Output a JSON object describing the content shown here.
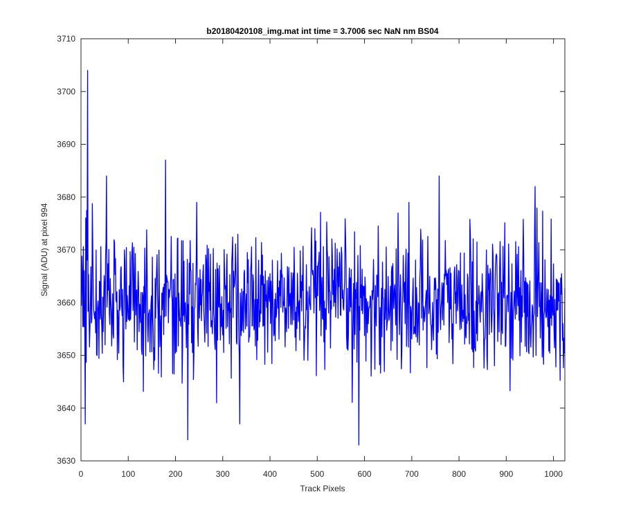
{
  "chart_data": {
    "type": "line",
    "title": "b20180420108_img.mat int time = 3.7006 sec  NaN nm BS04",
    "xlabel": "Track Pixels",
    "ylabel": "Signal (ADU) at pixel 994",
    "xlim": [
      0,
      1024
    ],
    "ylim": [
      3630,
      3710
    ],
    "xticks": [
      "0",
      "100",
      "200",
      "300",
      "400",
      "500",
      "600",
      "700",
      "800",
      "900",
      "1000"
    ],
    "yticks": [
      "3630",
      "3640",
      "3650",
      "3660",
      "3670",
      "3680",
      "3690",
      "3700",
      "3710"
    ],
    "grid": false,
    "box": true,
    "line_color": "#0000ff",
    "n_points": 1024,
    "baseline": 3660,
    "noise_range": [
      3645,
      3675
    ],
    "notable_points": [
      {
        "x": 13,
        "y": 3704
      },
      {
        "x": 8,
        "y": 3637
      },
      {
        "x": 178,
        "y": 3687
      },
      {
        "x": 53,
        "y": 3684
      },
      {
        "x": 225,
        "y": 3634
      },
      {
        "x": 587,
        "y": 3633
      },
      {
        "x": 757,
        "y": 3684
      },
      {
        "x": 960,
        "y": 3682
      },
      {
        "x": 335,
        "y": 3637
      },
      {
        "x": 670,
        "y": 3677
      }
    ]
  }
}
